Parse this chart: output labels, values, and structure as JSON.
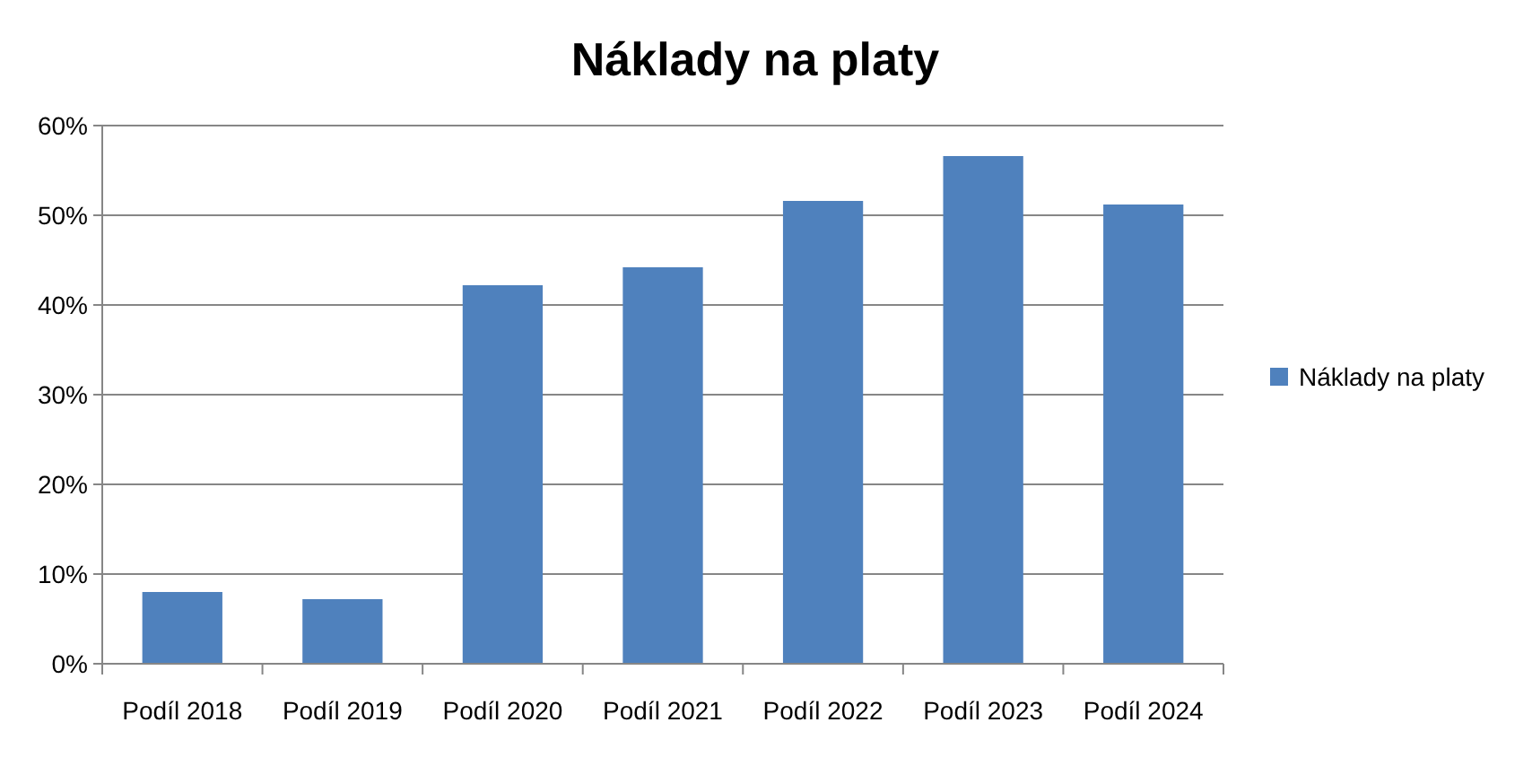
{
  "chart_data": {
    "type": "bar",
    "title": "Náklady na platy",
    "categories": [
      "Podíl 2018",
      "Podíl 2019",
      "Podíl 2020",
      "Podíl 2021",
      "Podíl 2022",
      "Podíl 2023",
      "Podíl 2024"
    ],
    "series": [
      {
        "name": "Náklady na platy",
        "color": "#4f81bd",
        "values": [
          8.0,
          7.2,
          42.2,
          44.2,
          51.6,
          56.6,
          51.2
        ]
      }
    ],
    "ylim": [
      0,
      60
    ],
    "yticks": [
      {
        "value": 0,
        "label": "0%"
      },
      {
        "value": 10,
        "label": "10%"
      },
      {
        "value": 20,
        "label": "20%"
      },
      {
        "value": 30,
        "label": "30%"
      },
      {
        "value": 40,
        "label": "40%"
      },
      {
        "value": 50,
        "label": "50%"
      },
      {
        "value": 60,
        "label": "60%"
      }
    ],
    "grid": "y",
    "legend": "right"
  }
}
